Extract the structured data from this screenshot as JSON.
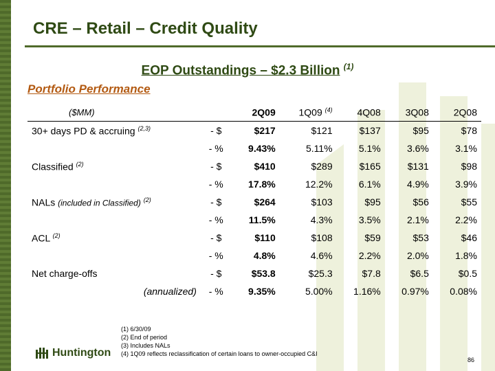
{
  "title": "CRE – Retail – Credit Quality",
  "subtitle": {
    "text": "EOP Outstandings – $2.3 Billion",
    "note": "(1)"
  },
  "section": "Portfolio Performance",
  "table": {
    "unit_label": "($MM)",
    "columns": [
      {
        "label": "2Q09",
        "note": ""
      },
      {
        "label": "1Q09",
        "note": "(4)"
      },
      {
        "label": "4Q08",
        "note": ""
      },
      {
        "label": "3Q08",
        "note": ""
      },
      {
        "label": "2Q08",
        "note": ""
      }
    ],
    "rows": [
      {
        "label": "30+ days PD & accruing",
        "label_note": "(2,3)",
        "label_style": "normal",
        "metric": "- $",
        "values": [
          "$217",
          "$121",
          "$137",
          "$95",
          "$78"
        ]
      },
      {
        "label": "",
        "label_note": "",
        "label_style": "normal",
        "metric": "- %",
        "values": [
          "9.43%",
          "5.11%",
          "5.1%",
          "3.6%",
          "3.1%"
        ]
      },
      {
        "label": "Classified",
        "label_note": "(2)",
        "label_style": "normal",
        "metric": "- $",
        "values": [
          "$410",
          "$289",
          "$165",
          "$131",
          "$98"
        ]
      },
      {
        "label": "",
        "label_note": "",
        "label_style": "normal",
        "metric": "- %",
        "values": [
          "17.8%",
          "12.2%",
          "6.1%",
          "4.9%",
          "3.9%"
        ]
      },
      {
        "label": "NALs",
        "label_extra": "(included in Classified)",
        "label_note": "(2)",
        "label_style": "normal",
        "metric": "- $",
        "values": [
          "$264",
          "$103",
          "$95",
          "$56",
          "$55"
        ]
      },
      {
        "label": "",
        "label_note": "",
        "label_style": "normal",
        "metric": "- %",
        "values": [
          "11.5%",
          "4.3%",
          "3.5%",
          "2.1%",
          "2.2%"
        ]
      },
      {
        "label": "ACL",
        "label_note": "(2)",
        "label_style": "normal",
        "metric": "- $",
        "values": [
          "$110",
          "$108",
          "$59",
          "$53",
          "$46"
        ]
      },
      {
        "label": "",
        "label_note": "",
        "label_style": "normal",
        "metric": "- %",
        "values": [
          "4.8%",
          "4.6%",
          "2.2%",
          "2.0%",
          "1.8%"
        ]
      },
      {
        "label": "Net charge-offs",
        "label_note": "",
        "label_style": "normal",
        "metric": "- $",
        "values": [
          "$53.8",
          "$25.3",
          "$7.8",
          "$6.5",
          "$0.5"
        ]
      },
      {
        "label": "(annualized)",
        "label_note": "",
        "label_style": "italic-right",
        "metric": "- %",
        "values": [
          "9.35%",
          "5.00%",
          "1.16%",
          "0.97%",
          "0.08%"
        ]
      }
    ]
  },
  "footnotes": [
    "(1)  6/30/09",
    "(2)  End of period",
    "(3)  Includes NALs",
    "(4)  1Q09 reflects reclassification of certain loans to owner-occupied C&I"
  ],
  "logo_text": "Huntington",
  "logo_icon": "huntington-logo-icon",
  "page_number": "86",
  "colors": {
    "brand_green": "#2f4a14",
    "band_green": "#4f6a2a",
    "section_orange": "#b35a12",
    "watermark": "#eef1dc"
  }
}
